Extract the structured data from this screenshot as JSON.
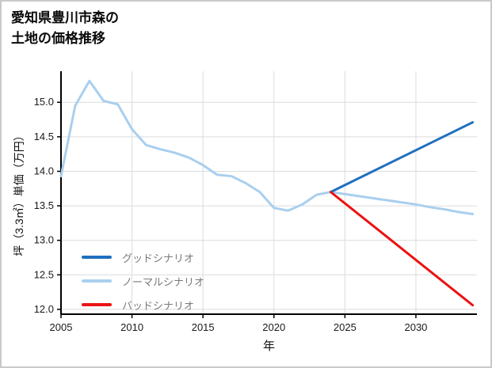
{
  "page": {
    "title_line1": "愛知県豊川市森の",
    "title_line2": "土地の価格推移"
  },
  "chart_data": {
    "type": "line",
    "title": "愛知県豊川市森の土地の価格推移",
    "xlabel": "年",
    "ylabel": "坪（3.3㎡）単価（万円）",
    "xlim": [
      2005,
      2034.3
    ],
    "ylim": [
      11.93,
      15.45
    ],
    "xticks": [
      2005,
      2010,
      2015,
      2020,
      2025,
      2030
    ],
    "yticks": [
      12.0,
      12.5,
      13.0,
      13.5,
      14.0,
      14.5,
      15.0
    ],
    "grid": true,
    "legend_position": "inside-left-bottom",
    "colors": {
      "grid": "#dcdcdc",
      "axis": "#000000",
      "tick_text": "#1a1a1a"
    },
    "series": [
      {
        "id": "good-scenario",
        "name": "グッドシナリオ",
        "color": "#1f6fbf",
        "z": 2,
        "x": [
          2024,
          2034
        ],
        "y": [
          13.7,
          14.71
        ]
      },
      {
        "id": "normal-scenario",
        "name": "ノーマルシナリオ",
        "color": "#a9cfee",
        "z": 1,
        "x": [
          2005,
          2006,
          2007,
          2008,
          2009,
          2010,
          2011,
          2012,
          2013,
          2014,
          2015,
          2016,
          2017,
          2018,
          2019,
          2020,
          2021,
          2022,
          2023,
          2024,
          2025,
          2026,
          2027,
          2028,
          2029,
          2030,
          2031,
          2032,
          2033,
          2034
        ],
        "y": [
          13.93,
          14.95,
          15.31,
          15.02,
          14.97,
          14.61,
          14.38,
          14.32,
          14.27,
          14.2,
          14.09,
          13.95,
          13.93,
          13.83,
          13.7,
          13.47,
          13.43,
          13.52,
          13.66,
          13.7,
          13.67,
          13.64,
          13.61,
          13.58,
          13.55,
          13.52,
          13.48,
          13.45,
          13.41,
          13.38
        ]
      },
      {
        "id": "bad-scenario",
        "name": "バッドシナリオ",
        "color": "#ec1212",
        "z": 3,
        "x": [
          2024,
          2034
        ],
        "y": [
          13.7,
          12.06
        ]
      }
    ]
  }
}
